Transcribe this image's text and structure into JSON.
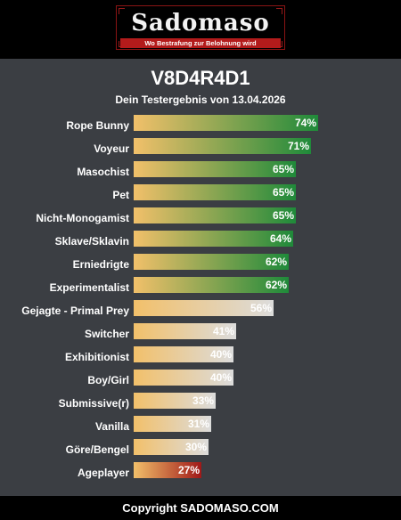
{
  "header": {
    "logo_text": "Sadomaso",
    "tagline": "Wo Bestrafung zur Belohnung wird"
  },
  "title": "V8D4R4D1",
  "subtitle": "Dein Testergebnis von 13.04.2026",
  "colors": {
    "bar_start": "#f2c06a",
    "high": "#1f8a3a",
    "mid": "#dcdcdc",
    "low": "#a01818"
  },
  "results": [
    {
      "label": "Rope Bunny",
      "percent": 74,
      "pct_text": "74%",
      "tier": "high"
    },
    {
      "label": "Voyeur",
      "percent": 71,
      "pct_text": "71%",
      "tier": "high"
    },
    {
      "label": "Masochist",
      "percent": 65,
      "pct_text": "65%",
      "tier": "high"
    },
    {
      "label": "Pet",
      "percent": 65,
      "pct_text": "65%",
      "tier": "high"
    },
    {
      "label": "Nicht-Monogamist",
      "percent": 65,
      "pct_text": "65%",
      "tier": "high"
    },
    {
      "label": "Sklave/Sklavin",
      "percent": 64,
      "pct_text": "64%",
      "tier": "high"
    },
    {
      "label": "Erniedrigte",
      "percent": 62,
      "pct_text": "62%",
      "tier": "high"
    },
    {
      "label": "Experimentalist",
      "percent": 62,
      "pct_text": "62%",
      "tier": "high"
    },
    {
      "label": "Gejagte - Primal Prey",
      "percent": 56,
      "pct_text": "56%",
      "tier": "mid"
    },
    {
      "label": "Switcher",
      "percent": 41,
      "pct_text": "41%",
      "tier": "mid"
    },
    {
      "label": "Exhibitionist",
      "percent": 40,
      "pct_text": "40%",
      "tier": "mid"
    },
    {
      "label": "Boy/Girl",
      "percent": 40,
      "pct_text": "40%",
      "tier": "mid"
    },
    {
      "label": "Submissive(r)",
      "percent": 33,
      "pct_text": "33%",
      "tier": "mid"
    },
    {
      "label": "Vanilla",
      "percent": 31,
      "pct_text": "31%",
      "tier": "mid"
    },
    {
      "label": "Göre/Bengel",
      "percent": 30,
      "pct_text": "30%",
      "tier": "mid"
    },
    {
      "label": "Ageplayer",
      "percent": 27,
      "pct_text": "27%",
      "tier": "low"
    }
  ],
  "footer": {
    "copyright": "Copyright SADOMASO.COM"
  }
}
